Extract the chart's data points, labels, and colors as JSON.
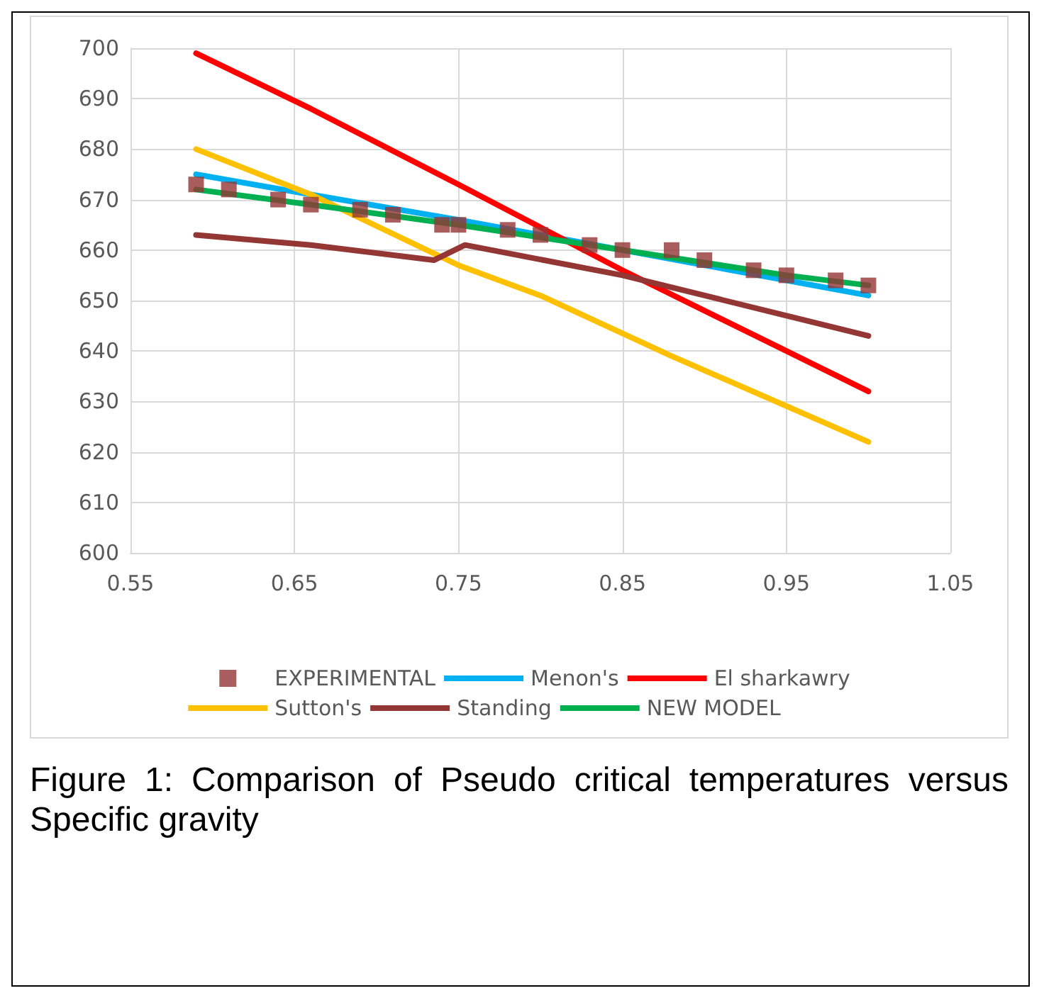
{
  "chart_data": {
    "type": "line",
    "xlim": [
      0.55,
      1.05
    ],
    "xticks": [
      0.55,
      0.65,
      0.75,
      0.85,
      0.95,
      1.05
    ],
    "ylim": [
      600,
      700
    ],
    "yticks": [
      600,
      610,
      620,
      630,
      640,
      650,
      660,
      670,
      680,
      690,
      700
    ],
    "grid": true,
    "legend": "bottom",
    "marker": "none",
    "line_style": "solid",
    "annotations": [
      "Figure 1: Comparison of Pseudo critical temperatures versus Specific gravity"
    ],
    "series": [
      {
        "name": "EXPERIMENTAL",
        "type": "scatter",
        "marker": "square",
        "color": "#943634",
        "x": [
          0.59,
          0.61,
          0.64,
          0.66,
          0.69,
          0.71,
          0.74,
          0.75,
          0.78,
          0.8,
          0.83,
          0.85,
          0.88,
          0.9,
          0.93,
          0.95,
          0.98,
          1.0
        ],
        "values": [
          673,
          672,
          670,
          669,
          668,
          667,
          665,
          665,
          664,
          663,
          661,
          660,
          660,
          658,
          656,
          655,
          654,
          653
        ]
      },
      {
        "name": "Menon's",
        "color": "#00b0f0",
        "x": [
          0.59,
          0.66,
          0.75,
          0.85,
          0.95,
          1.0
        ],
        "values": [
          675,
          671,
          666,
          660,
          654,
          651
        ]
      },
      {
        "name": "El sharkawry",
        "color": "#ff0000",
        "x": [
          0.59,
          0.66,
          0.75,
          0.85,
          0.95,
          1.0
        ],
        "values": [
          699,
          688,
          673,
          656,
          640,
          632
        ]
      },
      {
        "name": "Sutton's",
        "color": "#ffc000",
        "x": [
          0.59,
          0.66,
          0.75,
          0.8,
          0.88,
          1.0
        ],
        "values": [
          680,
          671,
          657,
          651,
          639,
          622
        ]
      },
      {
        "name": "Standing",
        "color": "#943634",
        "x": [
          0.59,
          0.66,
          0.735,
          0.754,
          0.85,
          0.95,
          1.0
        ],
        "values": [
          663,
          661,
          658,
          661,
          655,
          647,
          643
        ]
      },
      {
        "name": "NEW MODEL",
        "color": "#00b050",
        "x": [
          0.59,
          0.66,
          0.75,
          0.85,
          0.95,
          1.0
        ],
        "values": [
          672,
          669,
          665,
          660,
          655,
          653
        ]
      }
    ]
  }
}
